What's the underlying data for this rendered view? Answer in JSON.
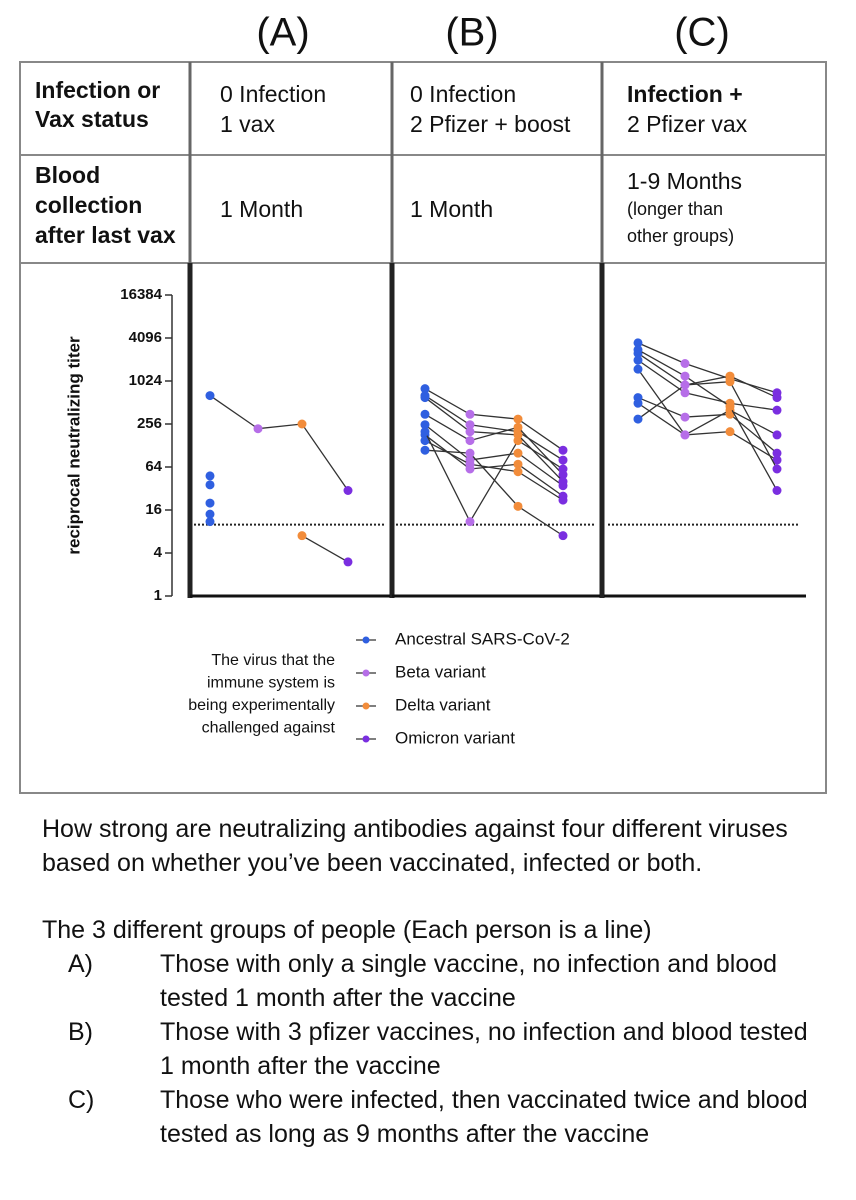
{
  "columns": [
    "(A)",
    "(B)",
    "(C)"
  ],
  "table": {
    "rows": [
      [
        [
          "Infection or",
          "Vax status"
        ],
        [
          "0 Infection",
          "1 vax"
        ],
        [
          "0 Infection",
          "2 Pfizer + boost"
        ],
        [
          "Infection +",
          "2 Pfizer vax"
        ]
      ],
      [
        [
          "Blood",
          "collection",
          "after last vax"
        ],
        [
          "1 Month"
        ],
        [
          "1 Month"
        ],
        [
          "1-9 Months",
          "(longer than",
          "other groups)"
        ]
      ]
    ]
  },
  "chart_data": [
    {
      "type": "line",
      "ylabel": "reciprocal neutralizing titer",
      "log": true,
      "log_base": 2,
      "ylim": [
        1,
        16384
      ],
      "yticks": [
        1,
        4,
        16,
        64,
        256,
        1024,
        4096,
        16384
      ],
      "reference_line": 10,
      "series": [
        {
          "values": [
            640,
            220,
            256,
            30
          ]
        },
        {
          "values": [
            20,
            null,
            7,
            3
          ]
        },
        {
          "values": [
            48,
            null,
            null,
            null
          ]
        },
        {
          "values": [
            36,
            null,
            null,
            null
          ]
        },
        {
          "values": [
            14,
            null,
            null,
            null
          ]
        },
        {
          "values": [
            11,
            null,
            null,
            null
          ]
        }
      ]
    },
    {
      "type": "line",
      "log": true,
      "log_base": 2,
      "ylim": [
        1,
        16384
      ],
      "reference_line": 10,
      "series": [
        {
          "values": [
            800,
            350,
            300,
            110
          ]
        },
        {
          "values": [
            640,
            250,
            200,
            80
          ]
        },
        {
          "values": [
            350,
            150,
            230,
            50
          ]
        },
        {
          "values": [
            250,
            80,
            100,
            35
          ]
        },
        {
          "values": [
            180,
            60,
            70,
            25
          ]
        },
        {
          "values": [
            150,
            70,
            55,
            22
          ]
        },
        {
          "values": [
            200,
            11,
            150,
            60
          ]
        },
        {
          "values": [
            110,
            100,
            18,
            7
          ]
        },
        {
          "values": [
            600,
            200,
            180,
            40
          ]
        }
      ]
    },
    {
      "type": "line",
      "log": true,
      "log_base": 2,
      "ylim": [
        1,
        16384
      ],
      "reference_line": 10,
      "series": [
        {
          "values": [
            3500,
            1800,
            1100,
            700
          ]
        },
        {
          "values": [
            2500,
            900,
            1200,
            600
          ]
        },
        {
          "values": [
            2000,
            700,
            500,
            400
          ]
        },
        {
          "values": [
            1500,
            180,
            400,
            180
          ]
        },
        {
          "values": [
            600,
            320,
            350,
            100
          ]
        },
        {
          "values": [
            500,
            180,
            200,
            80
          ]
        },
        {
          "values": [
            300,
            900,
            1000,
            60
          ]
        },
        {
          "values": [
            2800,
            1200,
            450,
            30
          ]
        }
      ]
    }
  ],
  "legend": {
    "items": [
      {
        "name": "Ancestral SARS-CoV-2",
        "color": "#2f5fe0"
      },
      {
        "name": "Beta variant",
        "color": "#b66ee8"
      },
      {
        "name": "Delta variant",
        "color": "#f28c3a"
      },
      {
        "name": "Omicron variant",
        "color": "#7a2ee0"
      }
    ]
  },
  "note": [
    "The virus that the",
    "immune system is",
    "being experimentally",
    "challenged against"
  ],
  "text": {
    "paragraph": "How strong are neutralizing antibodies against four different viruses based on whether you’ve been vaccinated, infected or both.",
    "groups_intro": "The 3 different groups of people (Each person is a line)",
    "groups": [
      {
        "label": "A)",
        "text": "Those with only a single vaccine, no infection and blood tested 1 month after the vaccine"
      },
      {
        "label": "B)",
        "text": "Those with 3 pfizer vaccines, no infection and blood tested 1 month after the vaccine"
      },
      {
        "label": "C)",
        "text": "Those who were infected, then vaccinated twice and blood tested as long as 9 months after the vaccine"
      }
    ]
  }
}
